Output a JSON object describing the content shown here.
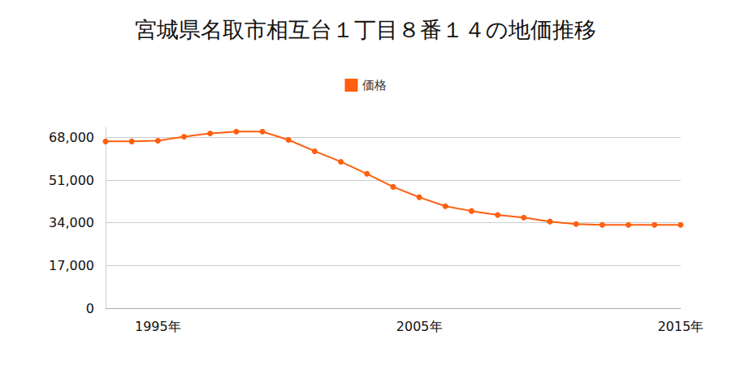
{
  "chart_data": {
    "type": "line",
    "title": "宮城県名取市相互台１丁目８番１４の地価推移",
    "categories": [
      null,
      null,
      "1995年",
      null,
      null,
      null,
      null,
      null,
      null,
      null,
      null,
      null,
      "2005年",
      null,
      null,
      null,
      null,
      null,
      null,
      null,
      null,
      null,
      "2015年"
    ],
    "series": [
      {
        "name": "価格",
        "color": "#ff5f0f",
        "values": [
          66400,
          66400,
          66700,
          68300,
          69600,
          70300,
          70300,
          67000,
          62500,
          58300,
          53500,
          48300,
          44200,
          40600,
          38700,
          37100,
          36100,
          34500,
          33500,
          33200,
          33200,
          33200,
          33200
        ]
      }
    ],
    "ylim": [
      0,
      72000
    ],
    "yticks": [
      0,
      {
        "value": 17000,
        "label": "17,000"
      },
      {
        "value": 34000,
        "label": "34,000"
      },
      {
        "value": 51000,
        "label": "51,000"
      },
      {
        "value": 68000,
        "label": "68,000"
      }
    ],
    "grid": true,
    "legend": "top",
    "marker": "circle"
  }
}
